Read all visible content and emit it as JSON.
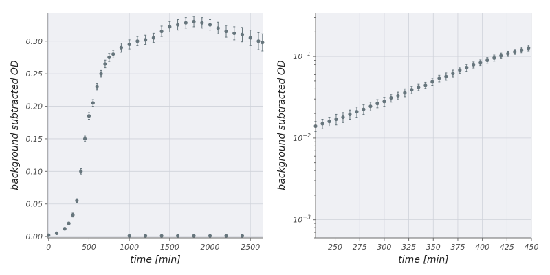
{
  "chart_data": [
    {
      "type": "scatter",
      "marker": "point with error bars",
      "xlabel": "time [min]",
      "ylabel": "background subtracted OD",
      "xlim": [
        -15,
        2660
      ],
      "ylim": [
        -0.002,
        0.343
      ],
      "xticks": [
        "0",
        "500",
        "1000",
        "1500",
        "2000",
        "2500"
      ],
      "yticks": [
        "0.00",
        "0.05",
        "0.10",
        "0.15",
        "0.20",
        "0.25",
        "0.30"
      ],
      "grid": true,
      "series": [
        {
          "color": "#66757c",
          "x": [
            0,
            100,
            200,
            250,
            300,
            350,
            400,
            450,
            500,
            550,
            600,
            650,
            700,
            750,
            800,
            900,
            1000,
            1100,
            1200,
            1300,
            1400,
            1500,
            1600,
            1700,
            1800,
            1900,
            2000,
            2100,
            2200,
            2300,
            2400,
            2500,
            2600,
            2650
          ],
          "y": [
            0.002,
            0.005,
            0.012,
            0.02,
            0.033,
            0.055,
            0.1,
            0.15,
            0.185,
            0.205,
            0.23,
            0.25,
            0.265,
            0.275,
            0.28,
            0.29,
            0.295,
            0.3,
            0.302,
            0.305,
            0.315,
            0.322,
            0.325,
            0.328,
            0.33,
            0.328,
            0.325,
            0.32,
            0.315,
            0.312,
            0.31,
            0.305,
            0.3,
            0.298
          ],
          "error": [
            0.001,
            0.001,
            0.002,
            0.002,
            0.003,
            0.003,
            0.004,
            0.004,
            0.005,
            0.005,
            0.005,
            0.005,
            0.006,
            0.006,
            0.006,
            0.007,
            0.007,
            0.007,
            0.007,
            0.007,
            0.008,
            0.008,
            0.008,
            0.008,
            0.008,
            0.008,
            0.008,
            0.009,
            0.009,
            0.01,
            0.011,
            0.012,
            0.013,
            0.013
          ]
        },
        {
          "color": "#66757c",
          "x": [
            1000,
            1200,
            1400,
            1600,
            1800,
            2000,
            2200,
            2400
          ],
          "y": [
            0.001,
            0.001,
            0.001,
            0.001,
            0.001,
            0.001,
            0.001,
            0.001
          ],
          "error": [
            0.001,
            0.001,
            0.001,
            0.001,
            0.001,
            0.001,
            0.001,
            0.001
          ]
        }
      ]
    },
    {
      "type": "scatter",
      "marker": "point with error bars",
      "xlabel": "time [min]",
      "ylabel": "background subtracted OD",
      "yscale": "log",
      "xlim": [
        230,
        450
      ],
      "ylim": [
        0.0006,
        0.34
      ],
      "xticks": [
        "250",
        "275",
        "300",
        "325",
        "350",
        "375",
        "400",
        "425",
        "450"
      ],
      "yticks": [
        "10^-3",
        "10^-2",
        "10^-1"
      ],
      "grid": true,
      "series": [
        {
          "color": "#66757c",
          "x": [
            230,
            237,
            244,
            251,
            258,
            265,
            272,
            279,
            286,
            293,
            300,
            307,
            314,
            321,
            328,
            335,
            342,
            349,
            356,
            363,
            370,
            377,
            384,
            391,
            398,
            405,
            412,
            419,
            426,
            433,
            440,
            447
          ],
          "y": [
            0.014,
            0.015,
            0.016,
            0.017,
            0.018,
            0.0195,
            0.021,
            0.0225,
            0.0245,
            0.0265,
            0.028,
            0.031,
            0.033,
            0.036,
            0.039,
            0.042,
            0.0445,
            0.049,
            0.054,
            0.057,
            0.062,
            0.068,
            0.073,
            0.079,
            0.084,
            0.09,
            0.096,
            0.102,
            0.108,
            0.114,
            0.12,
            0.127
          ],
          "error": [
            0.002,
            0.002,
            0.002,
            0.0025,
            0.0025,
            0.0025,
            0.003,
            0.003,
            0.003,
            0.003,
            0.0035,
            0.0035,
            0.0035,
            0.004,
            0.004,
            0.004,
            0.004,
            0.005,
            0.005,
            0.006,
            0.006,
            0.006,
            0.007,
            0.007,
            0.007,
            0.007,
            0.008,
            0.008,
            0.008,
            0.008,
            0.009,
            0.01
          ]
        }
      ]
    }
  ]
}
